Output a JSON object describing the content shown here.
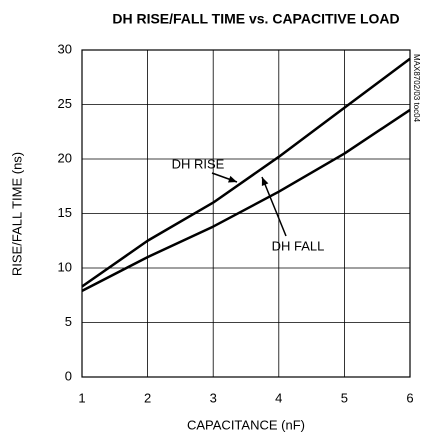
{
  "chart_data": {
    "type": "line",
    "title": "DH RISE/FALL TIME vs. CAPACITIVE LOAD",
    "side_note": "MAX8702/03 toc04",
    "x_label": "CAPACITANCE (nF)",
    "y_label": "RISE/FALL TIME (ns)",
    "x": [
      1,
      2,
      3,
      4,
      5,
      6
    ],
    "series": [
      {
        "name": "DH RISE",
        "color": "#000000",
        "values": [
          8.3,
          12.5,
          16,
          20.2,
          24.7,
          29.2
        ]
      },
      {
        "name": "DH FALL",
        "color": "#000000",
        "values": [
          7.9,
          11,
          13.8,
          17,
          20.5,
          24.5
        ]
      }
    ],
    "xlim": [
      1,
      6
    ],
    "xticks": [
      1,
      2,
      3,
      4,
      5,
      6
    ],
    "ylim": [
      0,
      30
    ],
    "yticks": [
      0,
      5,
      10,
      15,
      20,
      25,
      30
    ],
    "grid": true
  }
}
